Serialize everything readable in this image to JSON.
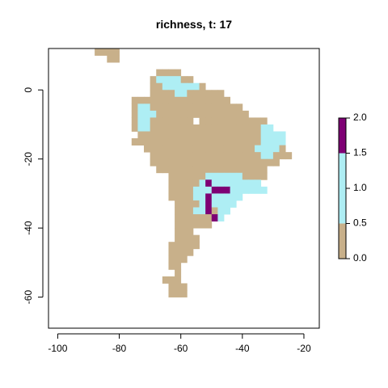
{
  "title": "richness, t: 17",
  "chart_data": {
    "type": "heatmap",
    "title": "richness, t: 17",
    "xlim": [
      -103,
      -15
    ],
    "ylim": [
      -69,
      12
    ],
    "x_ticks": [
      -100,
      -80,
      -60,
      -40,
      -20
    ],
    "y_ticks": [
      0,
      -20,
      -40,
      -60
    ],
    "cell_size_degrees": 2,
    "legend": {
      "placement": "right",
      "ticks": [
        "0.0",
        "0.5",
        "1.0",
        "1.5",
        "2.0"
      ],
      "bins": [
        {
          "from": 0.0,
          "to": 0.5,
          "color": "#c8b08a"
        },
        {
          "from": 0.5,
          "to": 1.5,
          "color": "#aeeef4"
        },
        {
          "from": 1.5,
          "to": 2.0,
          "color": "#7e0074"
        }
      ]
    },
    "colors": {
      "0": "#c8b08a",
      "1": "#aeeef4",
      "2": "#7e0074",
      "background": "#ffffff",
      "frame": "#000000"
    },
    "grid_origin": {
      "lon": -92,
      "lat": 12
    },
    "rows_note": "one string per 2-degree latitude row from 12 to -58, one char per 2-degree longitude column from -92; '.' = no data, digits = richness",
    "rows": [
      "..0000",
      "....00",
      ".......",
      "............0000",
      "...........0111100",
      "...........001111110",
      "...........000011000000",
      "........0000000000000000",
      "........011000000000000000",
      "........0111000000000000000",
      "........0110000000.00000000000",
      "........01100000000000000000011",
      ".........000000000000000000001111",
      "........0000000000000000000001111",
      "..........00000000000000000011110",
      "...........00000000000000000011000",
      "...........000000000000000000000",
      "............000000000000000000",
      "..............0000001111110000",
      "..............000001211111111",
      "..............0000111222111111",
      "..............000011211111",
      "...............0000121111",
      "...............000112011",
      "...............00000021",
      "...............000000",
      "...............000",
      "...............0000",
      "..............00000",
      "..............0000",
      "..............000",
      "..............00",
      "...............0",
      ".............000",
      "..............000",
      "..............000"
    ]
  }
}
